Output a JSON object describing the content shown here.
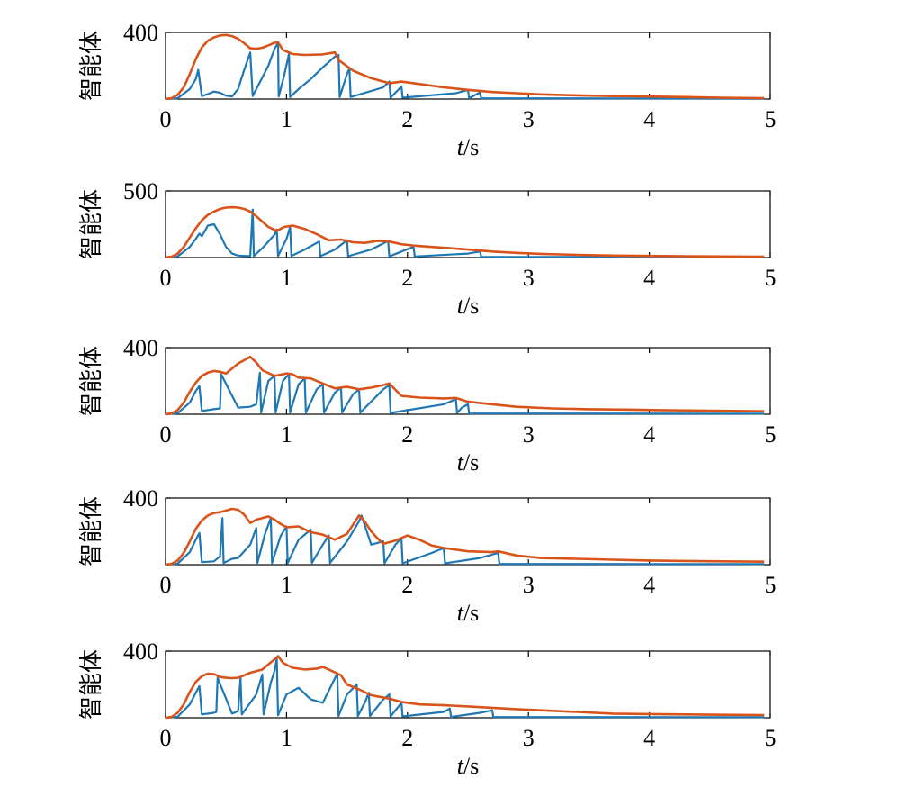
{
  "chart_data": [
    {
      "type": "line",
      "xlabel_italic": "t",
      "xlabel_unit": "/s",
      "ylabel": "智能体",
      "xlim": [
        0,
        5
      ],
      "ylim": [
        0,
        400
      ],
      "xticks": [
        "0",
        "1",
        "2",
        "3",
        "4",
        "5"
      ],
      "yticks": [
        "400"
      ],
      "grid": false,
      "colors": {
        "envelope": "#d9541a",
        "agents": "#1f77b4"
      },
      "series": [
        {
          "role": "envelope",
          "x": [
            0,
            0.05,
            0.1,
            0.15,
            0.2,
            0.25,
            0.3,
            0.35,
            0.4,
            0.45,
            0.5,
            0.55,
            0.6,
            0.65,
            0.7,
            0.75,
            0.8,
            0.85,
            0.9,
            0.93,
            0.97,
            1.05,
            1.15,
            1.3,
            1.4,
            1.43,
            1.55,
            1.7,
            1.85,
            1.95,
            2.1,
            2.3,
            2.5,
            2.7,
            2.9,
            3.1,
            3.4,
            3.7,
            4.0,
            4.3,
            4.6,
            4.95
          ],
          "y": [
            0,
            5,
            25,
            70,
            150,
            240,
            310,
            350,
            370,
            382,
            385,
            378,
            362,
            335,
            305,
            302,
            308,
            322,
            338,
            340,
            295,
            270,
            265,
            268,
            280,
            235,
            170,
            125,
            95,
            105,
            90,
            70,
            55,
            42,
            35,
            28,
            22,
            18,
            15,
            12,
            8,
            5
          ]
        },
        {
          "role": "agent",
          "x": [
            0,
            0.1,
            0.2,
            0.25,
            0.27,
            0.3,
            0.35,
            0.4,
            0.45,
            0.5,
            0.55,
            0.6,
            0.65,
            0.7,
            0.72,
            0.8,
            0.85,
            0.9,
            0.93,
            0.935,
            0.98,
            1.02,
            1.03,
            1.1,
            1.2,
            1.3,
            1.4,
            1.43,
            1.44,
            1.5,
            1.52,
            1.53,
            1.8,
            1.85,
            1.86,
            1.95,
            1.96,
            2.4,
            2.5,
            2.51,
            2.6,
            2.61,
            4.95
          ],
          "y": [
            0,
            5,
            60,
            120,
            175,
            18,
            30,
            45,
            38,
            20,
            15,
            60,
            175,
            280,
            18,
            130,
            200,
            300,
            340,
            15,
            140,
            270,
            12,
            60,
            120,
            190,
            255,
            265,
            12,
            150,
            185,
            12,
            70,
            105,
            8,
            75,
            8,
            35,
            55,
            5,
            40,
            5,
            2
          ]
        }
      ]
    },
    {
      "type": "line",
      "xlabel_italic": "t",
      "xlabel_unit": "/s",
      "ylabel": "智能体",
      "xlim": [
        0,
        5
      ],
      "ylim": [
        0,
        500
      ],
      "xticks": [
        "0",
        "1",
        "2",
        "3",
        "4",
        "5"
      ],
      "yticks": [
        "500"
      ],
      "grid": false,
      "colors": {
        "envelope": "#d9541a",
        "agents": "#1f77b4"
      },
      "series": [
        {
          "role": "envelope",
          "x": [
            0,
            0.05,
            0.1,
            0.15,
            0.2,
            0.25,
            0.3,
            0.35,
            0.4,
            0.45,
            0.5,
            0.55,
            0.6,
            0.65,
            0.7,
            0.75,
            0.85,
            0.92,
            0.98,
            1.05,
            1.15,
            1.25,
            1.35,
            1.45,
            1.55,
            1.65,
            1.75,
            1.85,
            1.95,
            2.05,
            2.2,
            2.35,
            2.5,
            2.7,
            2.9,
            3.1,
            3.4,
            3.7,
            4.0,
            4.3,
            4.6,
            4.95
          ],
          "y": [
            0,
            6,
            30,
            80,
            150,
            220,
            280,
            320,
            345,
            365,
            375,
            378,
            375,
            365,
            345,
            310,
            230,
            200,
            230,
            240,
            215,
            175,
            130,
            135,
            115,
            110,
            125,
            120,
            100,
            90,
            80,
            70,
            60,
            45,
            35,
            28,
            20,
            15,
            12,
            10,
            8,
            6
          ]
        },
        {
          "role": "agent",
          "x": [
            0,
            0.1,
            0.2,
            0.25,
            0.28,
            0.3,
            0.35,
            0.4,
            0.45,
            0.5,
            0.55,
            0.6,
            0.7,
            0.72,
            0.73,
            0.8,
            0.9,
            0.92,
            0.93,
            1.0,
            1.03,
            1.04,
            1.15,
            1.27,
            1.28,
            1.4,
            1.5,
            1.51,
            1.7,
            1.84,
            1.85,
            1.95,
            2.05,
            2.06,
            2.5,
            2.6,
            2.61,
            4.95
          ],
          "y": [
            0,
            8,
            80,
            140,
            180,
            160,
            240,
            250,
            175,
            80,
            30,
            15,
            10,
            360,
            12,
            70,
            170,
            210,
            12,
            140,
            230,
            12,
            60,
            120,
            10,
            60,
            130,
            10,
            60,
            125,
            8,
            45,
            80,
            8,
            30,
            45,
            5,
            3
          ]
        }
      ]
    },
    {
      "type": "line",
      "xlabel_italic": "t",
      "xlabel_unit": "/s",
      "ylabel": "智能体",
      "xlim": [
        0,
        5
      ],
      "ylim": [
        0,
        400
      ],
      "xticks": [
        "0",
        "1",
        "2",
        "3",
        "4",
        "5"
      ],
      "yticks": [
        "400"
      ],
      "grid": false,
      "colors": {
        "envelope": "#d9541a",
        "agents": "#1f77b4"
      },
      "series": [
        {
          "role": "envelope",
          "x": [
            0,
            0.05,
            0.1,
            0.15,
            0.2,
            0.25,
            0.3,
            0.35,
            0.4,
            0.45,
            0.5,
            0.6,
            0.7,
            0.75,
            0.8,
            0.9,
            1.0,
            1.05,
            1.1,
            1.2,
            1.3,
            1.4,
            1.5,
            1.6,
            1.7,
            1.8,
            1.85,
            1.95,
            2.1,
            2.3,
            2.4,
            2.5,
            2.7,
            2.9,
            3.2,
            3.5,
            3.8,
            4.1,
            4.4,
            4.7,
            4.95
          ],
          "y": [
            0,
            5,
            25,
            70,
            135,
            190,
            230,
            250,
            260,
            255,
            245,
            305,
            345,
            310,
            265,
            230,
            245,
            240,
            220,
            215,
            185,
            155,
            165,
            150,
            160,
            175,
            185,
            110,
            100,
            95,
            98,
            75,
            60,
            45,
            35,
            30,
            28,
            25,
            22,
            20,
            18
          ]
        },
        {
          "role": "agent",
          "x": [
            0,
            0.1,
            0.2,
            0.25,
            0.28,
            0.3,
            0.4,
            0.45,
            0.46,
            0.6,
            0.7,
            0.75,
            0.78,
            0.79,
            0.85,
            0.9,
            0.91,
            0.97,
            1.02,
            1.03,
            1.1,
            1.15,
            1.16,
            1.25,
            1.3,
            1.31,
            1.4,
            1.45,
            1.46,
            1.55,
            1.6,
            1.61,
            1.8,
            1.85,
            1.86,
            2.3,
            2.4,
            2.41,
            2.45,
            2.5,
            2.51,
            4.95
          ],
          "y": [
            0,
            6,
            70,
            140,
            170,
            20,
            30,
            35,
            240,
            40,
            45,
            60,
            250,
            10,
            200,
            230,
            10,
            200,
            240,
            10,
            180,
            215,
            10,
            150,
            180,
            10,
            130,
            160,
            10,
            120,
            150,
            10,
            150,
            175,
            8,
            60,
            90,
            8,
            40,
            60,
            5,
            3
          ]
        }
      ]
    },
    {
      "type": "line",
      "xlabel_italic": "t",
      "xlabel_unit": "/s",
      "ylabel": "智能体",
      "xlim": [
        0,
        5
      ],
      "ylim": [
        0,
        400
      ],
      "xticks": [
        "0",
        "1",
        "2",
        "3",
        "4",
        "5"
      ],
      "yticks": [
        "400"
      ],
      "grid": false,
      "colors": {
        "envelope": "#d9541a",
        "agents": "#1f77b4"
      },
      "series": [
        {
          "role": "envelope",
          "x": [
            0,
            0.05,
            0.1,
            0.15,
            0.2,
            0.25,
            0.3,
            0.35,
            0.4,
            0.45,
            0.5,
            0.55,
            0.6,
            0.65,
            0.7,
            0.75,
            0.8,
            0.85,
            0.9,
            0.95,
            1.0,
            1.1,
            1.2,
            1.3,
            1.4,
            1.5,
            1.6,
            1.65,
            1.7,
            1.75,
            1.8,
            1.9,
            2.0,
            2.1,
            2.2,
            2.3,
            2.5,
            2.7,
            2.75,
            2.9,
            3.1,
            3.4,
            3.7,
            4.0,
            4.3,
            4.6,
            4.95
          ],
          "y": [
            0,
            5,
            25,
            70,
            140,
            215,
            265,
            295,
            310,
            315,
            325,
            335,
            330,
            300,
            250,
            270,
            280,
            290,
            270,
            245,
            225,
            230,
            195,
            180,
            150,
            185,
            295,
            255,
            200,
            160,
            125,
            145,
            175,
            150,
            115,
            100,
            80,
            75,
            80,
            55,
            40,
            35,
            30,
            25,
            22,
            20,
            18
          ]
        },
        {
          "role": "agent",
          "x": [
            0,
            0.1,
            0.2,
            0.25,
            0.28,
            0.3,
            0.4,
            0.45,
            0.47,
            0.48,
            0.55,
            0.6,
            0.7,
            0.75,
            0.76,
            0.82,
            0.87,
            0.88,
            0.95,
            1.0,
            1.01,
            1.1,
            1.2,
            1.21,
            1.3,
            1.35,
            1.36,
            1.5,
            1.6,
            1.62,
            1.7,
            1.8,
            1.81,
            1.9,
            1.95,
            1.96,
            2.2,
            2.3,
            2.31,
            2.6,
            2.75,
            2.76,
            4.95
          ],
          "y": [
            0,
            6,
            75,
            150,
            190,
            15,
            20,
            50,
            280,
            10,
            35,
            40,
            120,
            220,
            10,
            180,
            280,
            10,
            170,
            230,
            10,
            150,
            210,
            10,
            120,
            175,
            10,
            140,
            260,
            295,
            120,
            140,
            8,
            120,
            160,
            8,
            70,
            100,
            8,
            40,
            70,
            5,
            3
          ]
        }
      ]
    },
    {
      "type": "line",
      "xlabel_italic": "t",
      "xlabel_unit": "/s",
      "ylabel": "智能体",
      "xlim": [
        0,
        5
      ],
      "ylim": [
        0,
        400
      ],
      "xticks": [
        "0",
        "1",
        "2",
        "3",
        "4",
        "5"
      ],
      "yticks": [
        "400"
      ],
      "grid": false,
      "colors": {
        "envelope": "#d9541a",
        "agents": "#1f77b4"
      },
      "series": [
        {
          "role": "envelope",
          "x": [
            0,
            0.05,
            0.1,
            0.15,
            0.2,
            0.25,
            0.3,
            0.35,
            0.4,
            0.45,
            0.5,
            0.55,
            0.6,
            0.65,
            0.7,
            0.75,
            0.8,
            0.85,
            0.9,
            0.93,
            0.97,
            1.05,
            1.15,
            1.25,
            1.3,
            1.35,
            1.45,
            1.5,
            1.6,
            1.7,
            1.85,
            1.95,
            2.1,
            2.3,
            2.5,
            2.7,
            2.9,
            3.1,
            3.4,
            3.7,
            4.0,
            4.3,
            4.6,
            4.95
          ],
          "y": [
            0,
            5,
            30,
            80,
            155,
            215,
            250,
            265,
            262,
            245,
            240,
            238,
            240,
            255,
            270,
            280,
            290,
            320,
            350,
            370,
            330,
            300,
            290,
            295,
            305,
            290,
            255,
            200,
            170,
            135,
            115,
            95,
            80,
            75,
            68,
            60,
            52,
            45,
            35,
            25,
            22,
            20,
            18,
            16
          ]
        },
        {
          "role": "agent",
          "x": [
            0,
            0.1,
            0.2,
            0.25,
            0.28,
            0.3,
            0.4,
            0.42,
            0.43,
            0.55,
            0.6,
            0.62,
            0.63,
            0.75,
            0.8,
            0.81,
            0.87,
            0.9,
            0.92,
            0.93,
            1.0,
            1.1,
            1.2,
            1.3,
            1.42,
            1.43,
            1.5,
            1.58,
            1.59,
            1.65,
            1.68,
            1.69,
            1.8,
            1.85,
            1.86,
            1.95,
            1.96,
            2.3,
            2.35,
            2.36,
            2.6,
            2.7,
            2.71,
            4.95
          ],
          "y": [
            0,
            6,
            80,
            150,
            190,
            20,
            30,
            35,
            240,
            25,
            40,
            240,
            20,
            140,
            260,
            20,
            210,
            280,
            355,
            15,
            140,
            180,
            110,
            90,
            265,
            10,
            140,
            200,
            10,
            95,
            150,
            10,
            110,
            140,
            8,
            90,
            8,
            35,
            55,
            5,
            30,
            45,
            5,
            3
          ]
        }
      ]
    }
  ]
}
